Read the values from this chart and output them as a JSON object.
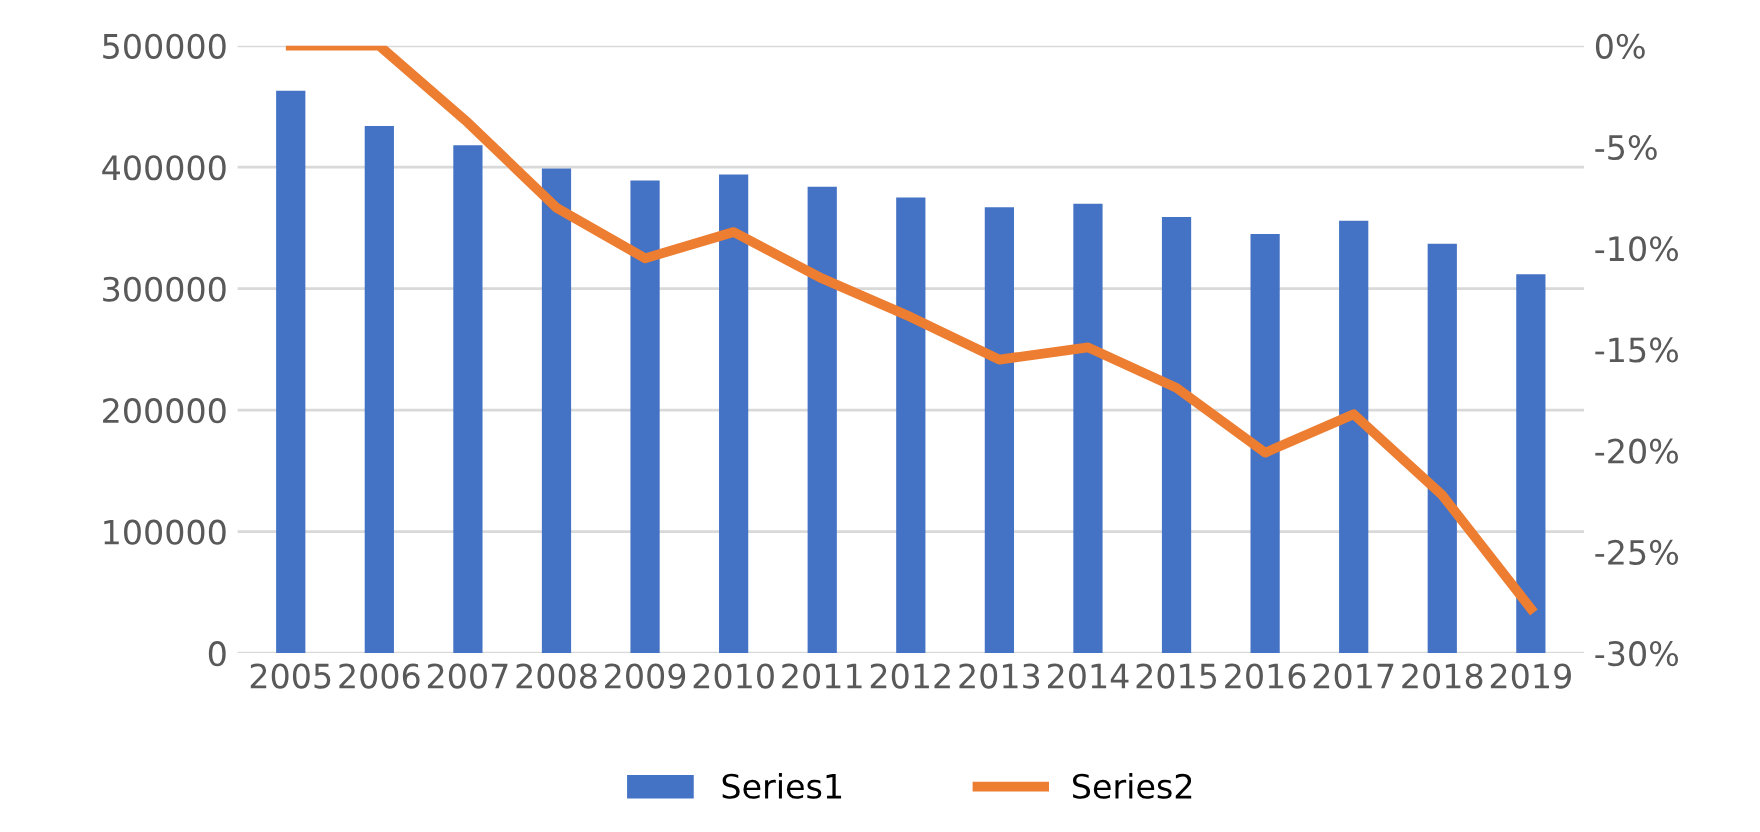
{
  "chart_data": {
    "type": "bar",
    "categories": [
      "2005",
      "2006",
      "2007",
      "2008",
      "2009",
      "2010",
      "2011",
      "2012",
      "2013",
      "2014",
      "2015",
      "2016",
      "2017",
      "2018",
      "2019"
    ],
    "series": [
      {
        "name": "Series1",
        "color": "#4472c4",
        "values": [
          463000,
          434000,
          418000,
          399000,
          389000,
          394000,
          384000,
          375000,
          367000,
          370000,
          359000,
          345000,
          356000,
          337000,
          312000
        ]
      },
      {
        "name": "Series2",
        "color": "#ed7d31",
        "type": "line",
        "axis": "y2",
        "values": [
          0,
          0,
          -3.8,
          -8.0,
          -10.5,
          -9.2,
          -11.5,
          -13.4,
          -15.5,
          -14.9,
          -16.9,
          -20.1,
          -18.2,
          -22.2,
          -27.8
        ]
      }
    ],
    "ylim": [
      0,
      500000
    ],
    "yticks": [
      0,
      100000,
      200000,
      300000,
      400000,
      500000
    ],
    "y2lim": [
      -30,
      0
    ],
    "y2ticks": [
      {
        "value": 0,
        "label": "0%"
      },
      {
        "value": -5,
        "label": "-5%"
      },
      {
        "value": -10,
        "label": "-10%"
      },
      {
        "value": -15,
        "label": "-15%"
      },
      {
        "value": -20,
        "label": "-20%"
      },
      {
        "value": -25,
        "label": "-25%"
      },
      {
        "value": -30,
        "label": "-30%"
      }
    ],
    "grid": "y",
    "legend": "bottom"
  }
}
